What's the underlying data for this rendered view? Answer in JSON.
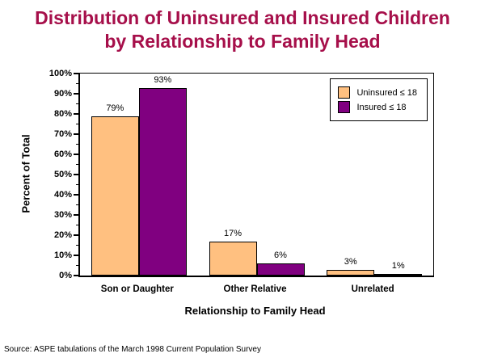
{
  "header": {
    "title": "Distribution of Uninsured and Insured Children\nby Relationship to Family Head",
    "title_color": "#A60F4A"
  },
  "chart_data": {
    "type": "bar",
    "title": "Distribution of Uninsured and Insured Children by Relationship to Family Head",
    "categories": [
      "Son or Daughter",
      "Other Relative",
      "Unrelated"
    ],
    "series": [
      {
        "name": "Uninsured ≤ 18",
        "color": "#FFC080",
        "values": [
          79,
          17,
          3
        ]
      },
      {
        "name": "Insured ≤ 18",
        "color": "#800080",
        "values": [
          93,
          6,
          1
        ]
      }
    ],
    "xlabel": "Relationship to Family Head",
    "ylabel": "Percent of Total",
    "ylim": [
      0,
      100
    ],
    "y_tick_step": 10,
    "y_minor_tick_step": 5,
    "y_tick_suffix": "%",
    "data_label_suffix": "%",
    "grid": false,
    "legend_position": "top-right",
    "axis_color": "#000000",
    "background_color": "#FFFFFF"
  },
  "footer": {
    "source": "Source: ASPE tabulations of the March 1998 Current Population Survey"
  }
}
